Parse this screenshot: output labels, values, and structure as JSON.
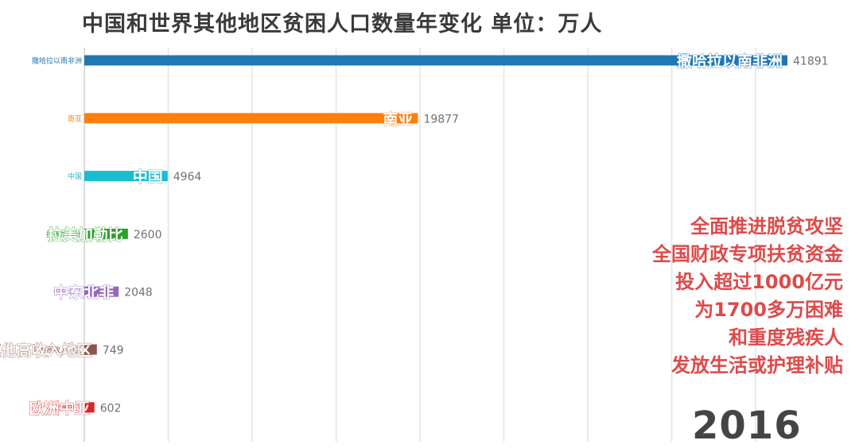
{
  "title": "中国和世界其他地区贫困人口数量年变化  单位：万人",
  "year": "2016",
  "annotation": [
    "全面推进脱贫攻坚",
    "全国财政专项扶贫资金",
    "投入超过1000亿元",
    "为1700多万困难",
    "和重度残疾人",
    "发放生活或护理补贴"
  ],
  "colors": {
    "grid": "#e3e3e3",
    "annotation": "#dd4a4a"
  },
  "chart_data": {
    "type": "bar",
    "orientation": "horizontal",
    "title": "中国和世界其他地区贫困人口数量年变化  单位：万人",
    "xlabel": "",
    "ylabel": "",
    "xlim": [
      0,
      41891
    ],
    "grid": true,
    "categories": [
      "撒哈拉以南非洲",
      "南亚",
      "中国",
      "拉美加勒比",
      "中东北非",
      "其他高收入地区",
      "欧洲中亚"
    ],
    "values": [
      41891,
      19877,
      4964,
      2600,
      2048,
      749,
      602
    ],
    "value_labels": [
      "41891",
      "19877",
      "4964",
      "2600",
      "2048",
      "749",
      "602"
    ],
    "bar_colors": [
      "#1f77b4",
      "#ff7f0e",
      "#17becf",
      "#2ca02c",
      "#9467bd",
      "#8c564b",
      "#d62728"
    ]
  }
}
